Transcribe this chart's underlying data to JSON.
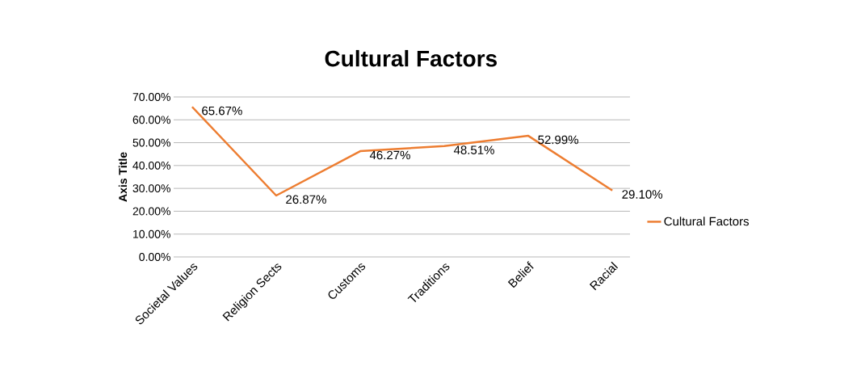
{
  "chart_data": {
    "type": "line",
    "title": "Cultural Factors",
    "ylabel": "Axis Title",
    "categories": [
      "Societal Values",
      "Religion Sects",
      "Customs",
      "Traditions",
      "Belief",
      "Racial"
    ],
    "series": [
      {
        "name": "Cultural Factors",
        "color": "#ed7d31",
        "values": [
          65.67,
          26.87,
          46.27,
          48.51,
          52.99,
          29.1
        ],
        "value_labels": [
          "65.67%",
          "26.87%",
          "46.27%",
          "48.51%",
          "52.99%",
          "29.10%"
        ]
      }
    ],
    "ylim": [
      0,
      70
    ],
    "yticks": [
      {
        "value": 0,
        "label": "0.00%"
      },
      {
        "value": 10,
        "label": "10.00%"
      },
      {
        "value": 20,
        "label": "20.00%"
      },
      {
        "value": 30,
        "label": "30.00%"
      },
      {
        "value": 40,
        "label": "40.00%"
      },
      {
        "value": 50,
        "label": "50.00%"
      },
      {
        "value": 60,
        "label": "60.00%"
      },
      {
        "value": 70,
        "label": "70.00%"
      }
    ],
    "grid": "y",
    "legend": "right",
    "marker": "none",
    "line_style": "solid"
  }
}
